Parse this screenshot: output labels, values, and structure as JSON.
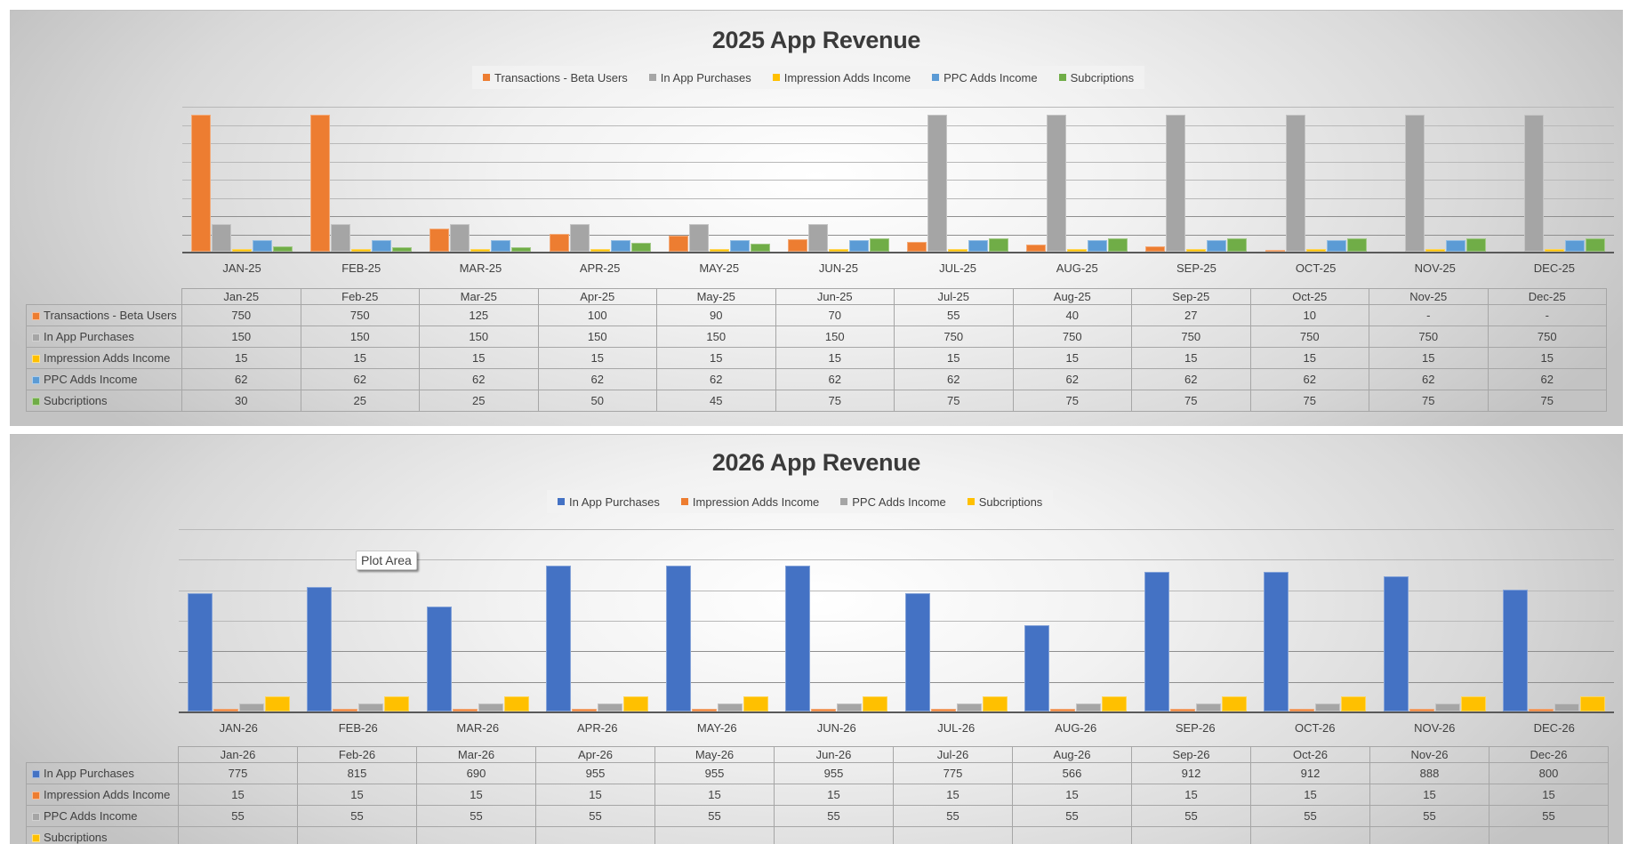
{
  "chart_data": [
    {
      "type": "bar",
      "title": "2025 App Revenue",
      "categories": [
        "JAN-25",
        "FEB-25",
        "MAR-25",
        "APR-25",
        "MAY-25",
        "JUN-25",
        "JUL-25",
        "AUG-25",
        "SEP-25",
        "OCT-25",
        "NOV-25",
        "DEC-25"
      ],
      "table_headers": [
        "Jan-25",
        "Feb-25",
        "Mar-25",
        "Apr-25",
        "May-25",
        "Jun-25",
        "Jul-25",
        "Aug-25",
        "Sep-25",
        "Oct-25",
        "Nov-25",
        "Dec-25"
      ],
      "series": [
        {
          "name": "Transactions - Beta Users",
          "color": "#ed7d31",
          "values": [
            750,
            750,
            125,
            100,
            90,
            70,
            55,
            40,
            27,
            10,
            0,
            0
          ],
          "display": [
            "750",
            "750",
            "125",
            "100",
            "90",
            "70",
            "55",
            "40",
            "27",
            "10",
            "-",
            "-"
          ]
        },
        {
          "name": "In App Purchases",
          "color": "#a5a5a5",
          "values": [
            150,
            150,
            150,
            150,
            150,
            150,
            750,
            750,
            750,
            750,
            750,
            750
          ],
          "display": [
            "150",
            "150",
            "150",
            "150",
            "150",
            "150",
            "750",
            "750",
            "750",
            "750",
            "750",
            "750"
          ]
        },
        {
          "name": "Impression Adds Income",
          "color": "#ffc000",
          "values": [
            15,
            15,
            15,
            15,
            15,
            15,
            15,
            15,
            15,
            15,
            15,
            15
          ],
          "display": [
            "15",
            "15",
            "15",
            "15",
            "15",
            "15",
            "15",
            "15",
            "15",
            "15",
            "15",
            "15"
          ]
        },
        {
          "name": "PPC Adds Income",
          "color": "#5b9bd5",
          "values": [
            62,
            62,
            62,
            62,
            62,
            62,
            62,
            62,
            62,
            62,
            62,
            62
          ],
          "display": [
            "62",
            "62",
            "62",
            "62",
            "62",
            "62",
            "62",
            "62",
            "62",
            "62",
            "62",
            "62"
          ]
        },
        {
          "name": "Subcriptions",
          "color": "#70ad47",
          "values": [
            30,
            25,
            25,
            50,
            45,
            75,
            75,
            75,
            75,
            75,
            75,
            75
          ],
          "display": [
            "30",
            "25",
            "25",
            "50",
            "45",
            "75",
            "75",
            "75",
            "75",
            "75",
            "75",
            "75"
          ]
        }
      ],
      "xlabel": "",
      "ylabel": "",
      "ylim": [
        0,
        800
      ],
      "grid": true,
      "legend_position": "top",
      "data_table": true
    },
    {
      "type": "bar",
      "title": "2026 App Revenue",
      "categories": [
        "JAN-26",
        "FEB-26",
        "MAR-26",
        "APR-26",
        "MAY-26",
        "JUN-26",
        "JUL-26",
        "AUG-26",
        "SEP-26",
        "OCT-26",
        "NOV-26",
        "DEC-26"
      ],
      "table_headers": [
        "Jan-26",
        "Feb-26",
        "Mar-26",
        "Apr-26",
        "May-26",
        "Jun-26",
        "Jul-26",
        "Aug-26",
        "Sep-26",
        "Oct-26",
        "Nov-26",
        "Dec-26"
      ],
      "series": [
        {
          "name": "In App Purchases",
          "color": "#4472c4",
          "values": [
            775,
            815,
            690,
            955,
            955,
            955,
            775,
            566,
            912,
            912,
            888,
            800
          ],
          "display": [
            "775",
            "815",
            "690",
            "955",
            "955",
            "955",
            "775",
            "566",
            "912",
            "912",
            "888",
            "800"
          ]
        },
        {
          "name": "Impression Adds Income",
          "color": "#ed7d31",
          "values": [
            15,
            15,
            15,
            15,
            15,
            15,
            15,
            15,
            15,
            15,
            15,
            15
          ],
          "display": [
            "15",
            "15",
            "15",
            "15",
            "15",
            "15",
            "15",
            "15",
            "15",
            "15",
            "15",
            "15"
          ]
        },
        {
          "name": "PPC Adds Income",
          "color": "#a5a5a5",
          "values": [
            55,
            55,
            55,
            55,
            55,
            55,
            55,
            55,
            55,
            55,
            55,
            55
          ],
          "display": [
            "55",
            "55",
            "55",
            "55",
            "55",
            "55",
            "55",
            "55",
            "55",
            "55",
            "55",
            "55"
          ]
        },
        {
          "name": "Subcriptions",
          "color": "#ffc000",
          "values": [
            100,
            100,
            100,
            100,
            100,
            100,
            100,
            100,
            100,
            100,
            100,
            100
          ],
          "display": null
        }
      ],
      "xlabel": "",
      "ylabel": "",
      "ylim": [
        0,
        1200
      ],
      "grid": true,
      "legend_position": "top",
      "data_table": true,
      "tooltip": "Plot Area"
    }
  ]
}
